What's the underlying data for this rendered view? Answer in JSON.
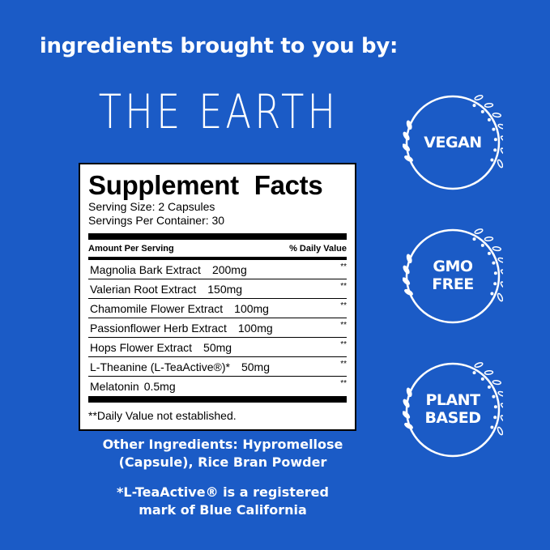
{
  "header": {
    "tagline": "ingredients brought to you by:",
    "title": "THE EARTH"
  },
  "label": {
    "title": "Supplement  Facts",
    "serving_size": "Serving Size: 2 Capsules",
    "servings_per_container": "Servings Per Container: 30",
    "amount_header": "Amount Per Serving",
    "dv_header": "% Daily Value",
    "rows": [
      {
        "name": "Magnolia Bark Extract",
        "amount": "200mg",
        "dv": "**"
      },
      {
        "name": "Valerian Root Extract",
        "amount": "150mg",
        "dv": "**"
      },
      {
        "name": "Chamomile Flower Extract",
        "amount": "100mg",
        "dv": "**"
      },
      {
        "name": "Passionflower Herb Extract",
        "amount": "100mg",
        "dv": "**"
      },
      {
        "name": "Hops Flower Extract",
        "amount": "50mg",
        "dv": "**"
      },
      {
        "name": "L-Theanine (L-TeaActive®)*",
        "amount": "50mg",
        "dv": "**"
      },
      {
        "name": "Melatonin",
        "amount": "0.5mg",
        "dv": "**"
      }
    ],
    "footnote": "**Daily Value not established."
  },
  "other_ingredients": {
    "line1": "Other Ingredients: Hypromellose",
    "line2": "(Capsule), Rice Bran Powder"
  },
  "trademark": {
    "line1": "*L-TeaActive® is a registered",
    "line2": "mark of Blue California"
  },
  "badges": [
    {
      "line1": "VEGAN",
      "line2": "",
      "icon": "laurel-wreath-icon"
    },
    {
      "line1": "GMO",
      "line2": "FREE",
      "icon": "laurel-wreath-icon"
    },
    {
      "line1": "PLANT",
      "line2": "BASED",
      "icon": "laurel-wreath-icon"
    }
  ],
  "colors": {
    "background": "#1b5bc6",
    "text": "#ffffff",
    "label": "#000000"
  }
}
